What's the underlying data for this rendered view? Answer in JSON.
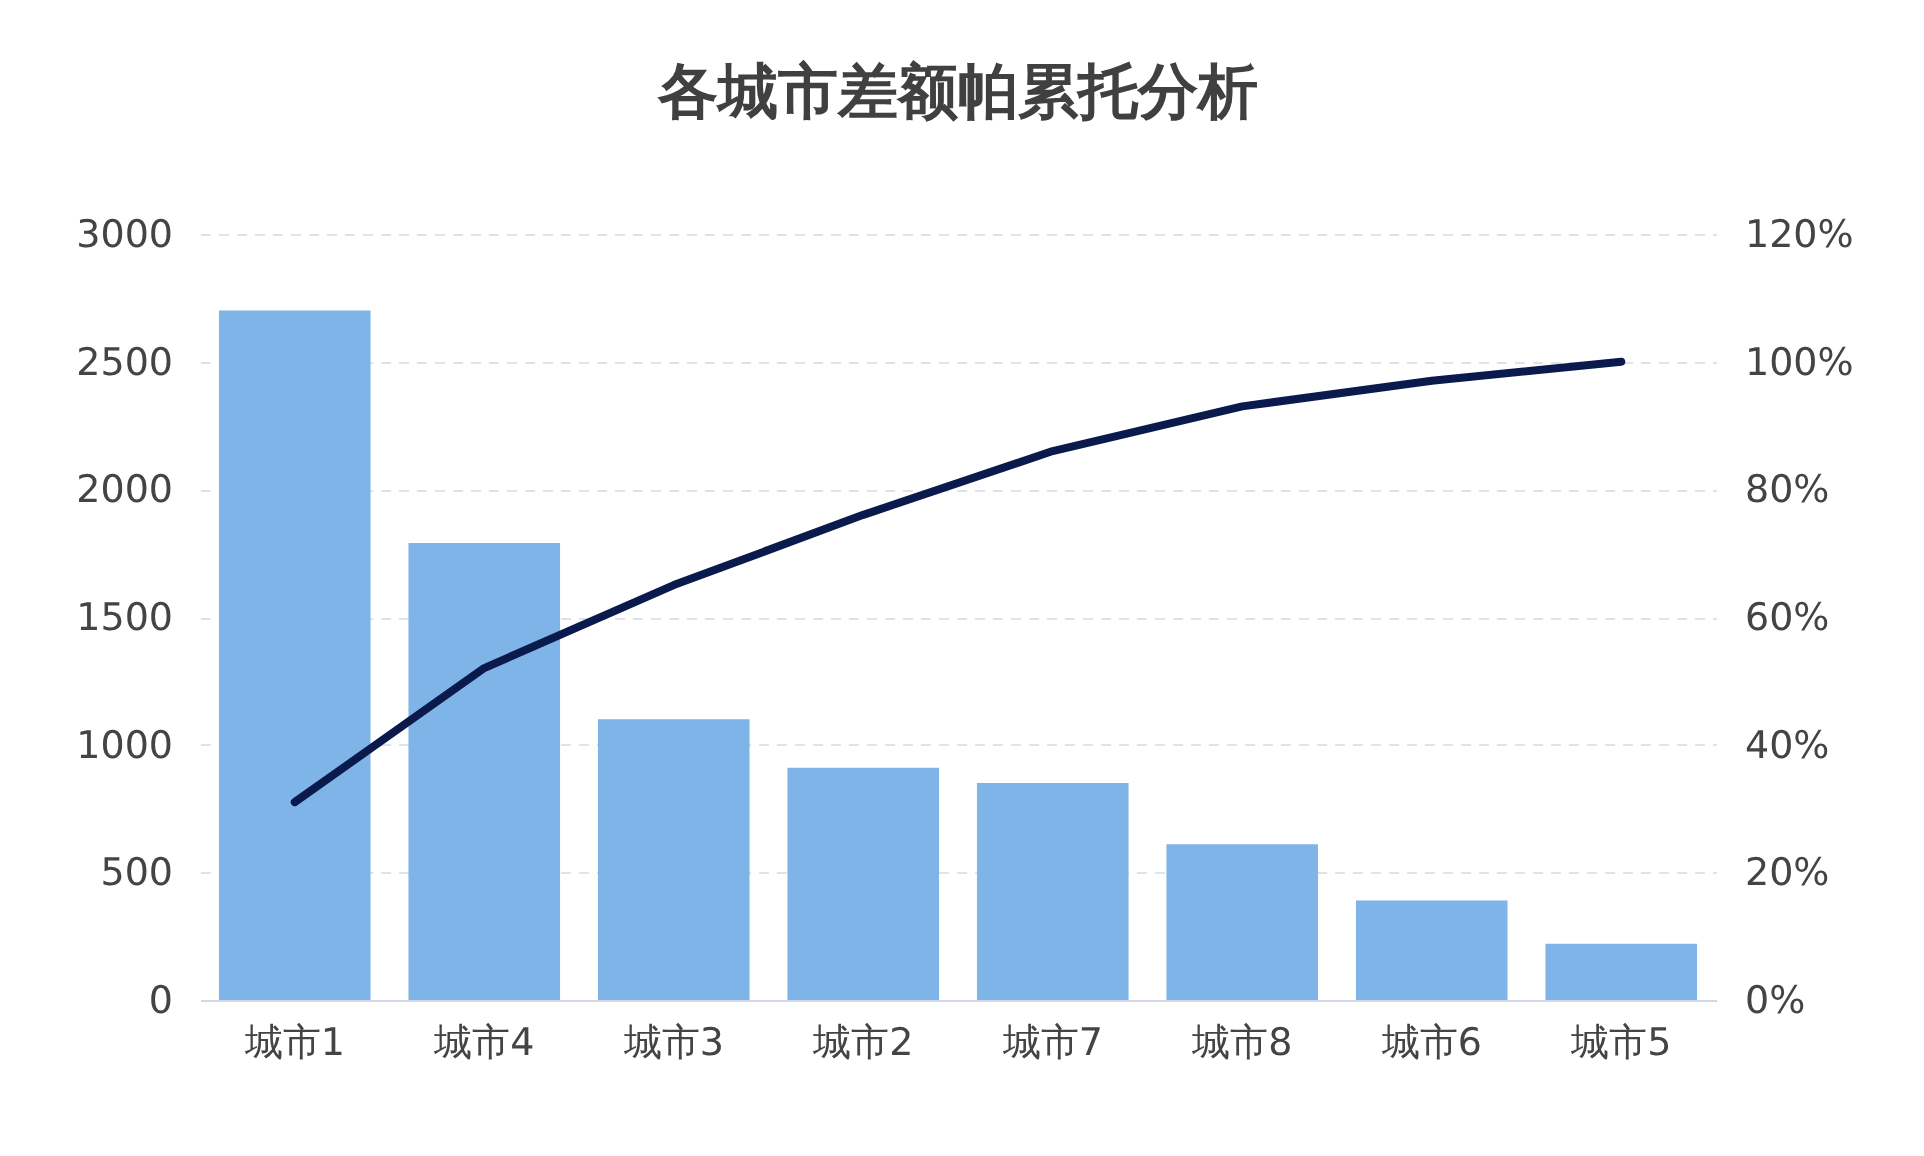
{
  "chart_data": {
    "type": "bar",
    "title": "各城市差额帕累托分析",
    "categories": [
      "城市1",
      "城市4",
      "城市3",
      "城市2",
      "城市7",
      "城市8",
      "城市6",
      "城市5"
    ],
    "series": [
      {
        "color": "#7fb4e8",
        "values": [
          2700,
          1790,
          1100,
          910,
          850,
          610,
          390,
          220
        ]
      },
      {
        "type": "line",
        "axis": "y2",
        "color": "#0b1a4d",
        "values": [
          31,
          52,
          65,
          76,
          86,
          93,
          97,
          100
        ]
      }
    ],
    "ylim": [
      0,
      3000
    ],
    "yticks": [
      0,
      500,
      1000,
      1500,
      2000,
      2500,
      3000
    ],
    "y2lim": [
      0,
      120
    ],
    "y2ticks": [
      {
        "value": 0,
        "label": "0%"
      },
      {
        "value": 20,
        "label": "20%"
      },
      {
        "value": 40,
        "label": "40%"
      },
      {
        "value": 60,
        "label": "60%"
      },
      {
        "value": 80,
        "label": "80%"
      },
      {
        "value": 100,
        "label": "100%"
      },
      {
        "value": 120,
        "label": "120%"
      }
    ],
    "grid": "y"
  }
}
